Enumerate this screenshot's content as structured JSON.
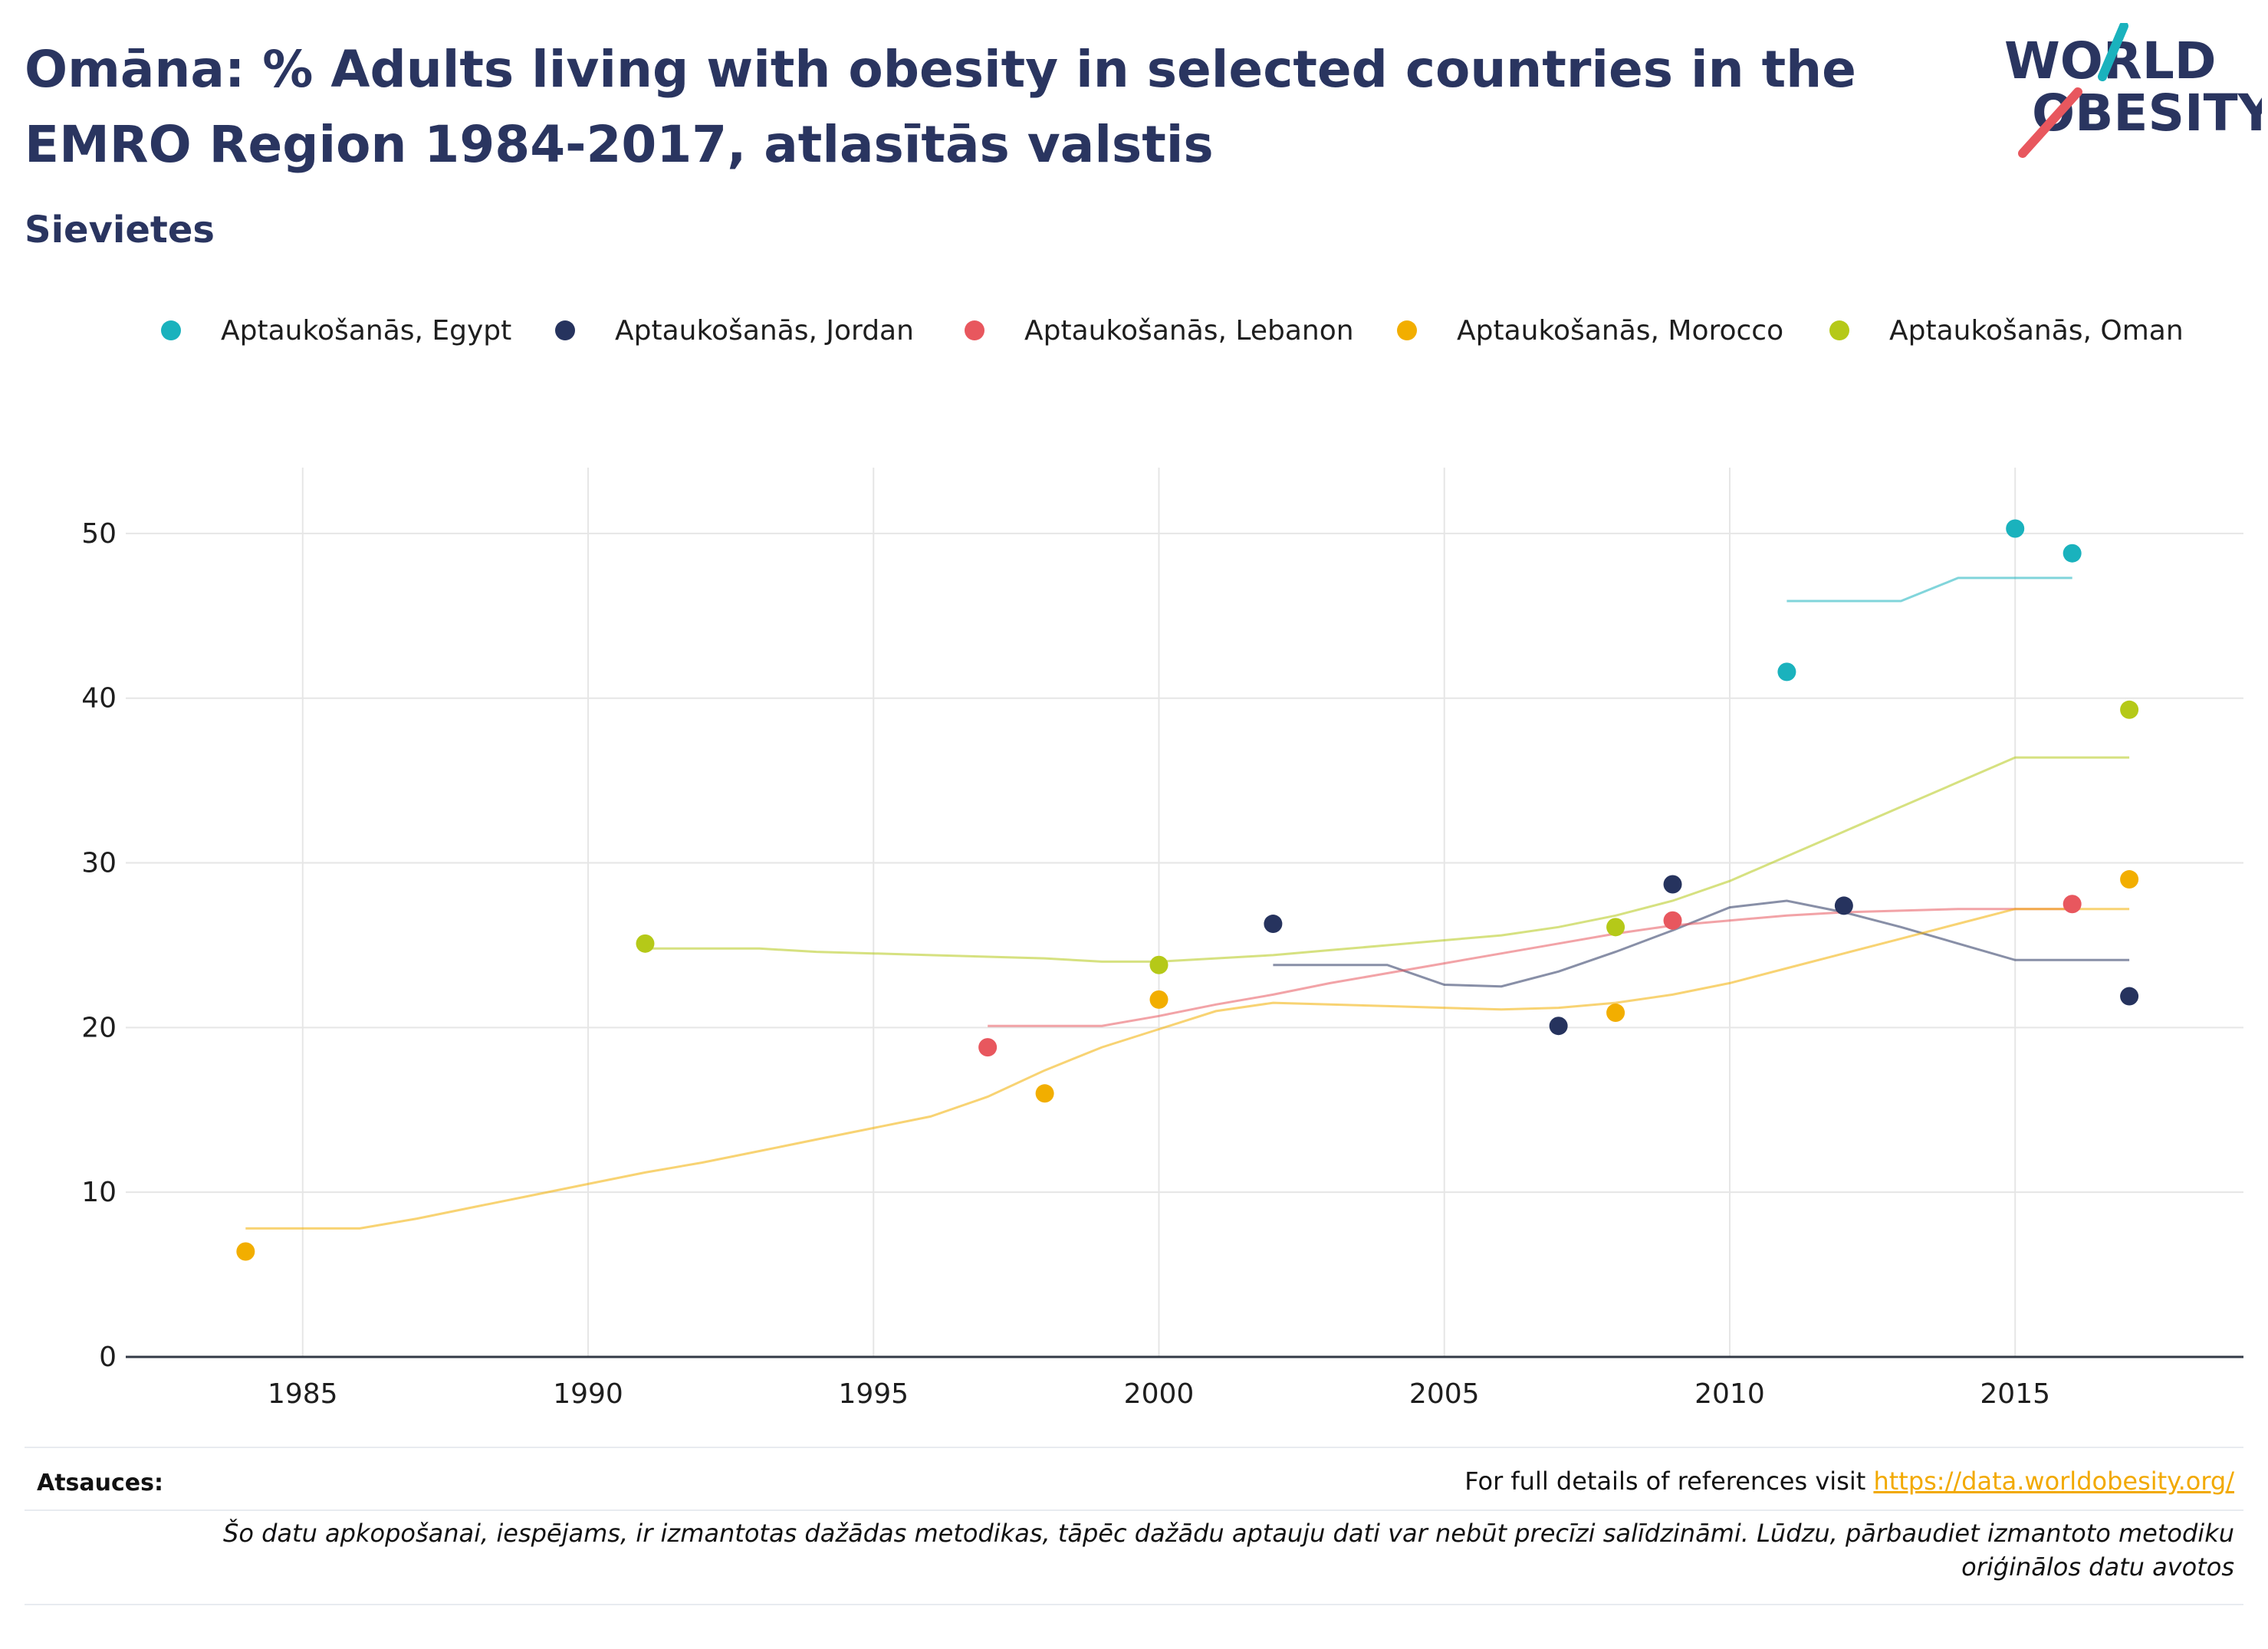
{
  "header": {
    "title": "Omāna: % Adults living with obesity in selected countries in the EMRO Region 1984-2017, atlasītās valstis",
    "subtitle": "Sievietes"
  },
  "logo": {
    "line1": "WORLD",
    "line2": "OBESITY"
  },
  "colors": {
    "Egypt": "#1ab2bd",
    "Jordan": "#26335e",
    "Lebanon": "#e8575e",
    "Morocco": "#f2ae00",
    "Oman": "#b5c918",
    "title": "#2a3560",
    "link": "#f2a900"
  },
  "chart_data": {
    "type": "scatter",
    "xlim": [
      1981.9,
      2019
    ],
    "ylim": [
      0,
      54
    ],
    "x_ticks": [
      1985,
      1990,
      1995,
      2000,
      2005,
      2010,
      2015
    ],
    "y_ticks": [
      0,
      10,
      20,
      30,
      40,
      50
    ],
    "grid": true,
    "legend_position": "top",
    "series": [
      {
        "name": "Aptaukošanās, Egypt",
        "key": "Egypt",
        "points": [
          [
            2011,
            41.6
          ],
          [
            2015,
            50.3
          ],
          [
            2016,
            48.8
          ]
        ],
        "trend": [
          [
            2011,
            45.9
          ],
          [
            2012,
            45.9
          ],
          [
            2013,
            45.9
          ],
          [
            2014,
            47.3
          ],
          [
            2015,
            47.3
          ],
          [
            2016,
            47.3
          ]
        ]
      },
      {
        "name": "Aptaukošanās, Jordan",
        "key": "Jordan",
        "points": [
          [
            2002,
            26.3
          ],
          [
            2007,
            20.1
          ],
          [
            2009,
            28.7
          ],
          [
            2012,
            27.4
          ],
          [
            2017,
            21.9
          ]
        ],
        "trend": [
          [
            2002,
            23.8
          ],
          [
            2003,
            23.8
          ],
          [
            2004,
            23.8
          ],
          [
            2005,
            22.6
          ],
          [
            2006,
            22.5
          ],
          [
            2007,
            23.4
          ],
          [
            2008,
            24.6
          ],
          [
            2009,
            25.9
          ],
          [
            2010,
            27.3
          ],
          [
            2011,
            27.7
          ],
          [
            2012,
            27.0
          ],
          [
            2013,
            26.1
          ],
          [
            2014,
            25.1
          ],
          [
            2015,
            24.1
          ],
          [
            2016,
            24.1
          ],
          [
            2017,
            24.1
          ]
        ]
      },
      {
        "name": "Aptaukošanās, Lebanon",
        "key": "Lebanon",
        "points": [
          [
            1997,
            18.8
          ],
          [
            2009,
            26.5
          ],
          [
            2016,
            27.5
          ]
        ],
        "trend": [
          [
            1997,
            20.1
          ],
          [
            1998,
            20.1
          ],
          [
            1999,
            20.1
          ],
          [
            2000,
            20.7
          ],
          [
            2001,
            21.4
          ],
          [
            2002,
            22.0
          ],
          [
            2003,
            22.7
          ],
          [
            2004,
            23.3
          ],
          [
            2005,
            23.9
          ],
          [
            2006,
            24.5
          ],
          [
            2007,
            25.1
          ],
          [
            2008,
            25.7
          ],
          [
            2009,
            26.2
          ],
          [
            2010,
            26.5
          ],
          [
            2011,
            26.8
          ],
          [
            2012,
            27.0
          ],
          [
            2013,
            27.1
          ],
          [
            2014,
            27.2
          ],
          [
            2015,
            27.2
          ],
          [
            2016,
            27.2
          ]
        ]
      },
      {
        "name": "Aptaukošanās, Morocco",
        "key": "Morocco",
        "points": [
          [
            1984,
            6.4
          ],
          [
            1998,
            16.0
          ],
          [
            2000,
            21.7
          ],
          [
            2008,
            20.9
          ],
          [
            2017,
            29.0
          ]
        ],
        "trend": [
          [
            1984,
            7.8
          ],
          [
            1985,
            7.8
          ],
          [
            1986,
            7.8
          ],
          [
            1987,
            8.4
          ],
          [
            1988,
            9.1
          ],
          [
            1989,
            9.8
          ],
          [
            1990,
            10.5
          ],
          [
            1991,
            11.2
          ],
          [
            1992,
            11.8
          ],
          [
            1993,
            12.5
          ],
          [
            1994,
            13.2
          ],
          [
            1995,
            13.9
          ],
          [
            1996,
            14.6
          ],
          [
            1997,
            15.8
          ],
          [
            1998,
            17.4
          ],
          [
            1999,
            18.8
          ],
          [
            2000,
            19.9
          ],
          [
            2001,
            21.0
          ],
          [
            2002,
            21.5
          ],
          [
            2003,
            21.4
          ],
          [
            2004,
            21.3
          ],
          [
            2005,
            21.2
          ],
          [
            2006,
            21.1
          ],
          [
            2007,
            21.2
          ],
          [
            2008,
            21.5
          ],
          [
            2009,
            22.0
          ],
          [
            2010,
            22.7
          ],
          [
            2011,
            23.6
          ],
          [
            2012,
            24.5
          ],
          [
            2013,
            25.4
          ],
          [
            2014,
            26.3
          ],
          [
            2015,
            27.2
          ],
          [
            2016,
            27.2
          ],
          [
            2017,
            27.2
          ]
        ]
      },
      {
        "name": "Aptaukošanās, Oman",
        "key": "Oman",
        "points": [
          [
            1991,
            25.1
          ],
          [
            2000,
            23.8
          ],
          [
            2008,
            26.1
          ],
          [
            2017,
            39.3
          ]
        ],
        "trend": [
          [
            1991,
            24.8
          ],
          [
            1992,
            24.8
          ],
          [
            1993,
            24.8
          ],
          [
            1994,
            24.6
          ],
          [
            1995,
            24.5
          ],
          [
            1996,
            24.4
          ],
          [
            1997,
            24.3
          ],
          [
            1998,
            24.2
          ],
          [
            1999,
            24.0
          ],
          [
            2000,
            24.0
          ],
          [
            2001,
            24.2
          ],
          [
            2002,
            24.4
          ],
          [
            2003,
            24.7
          ],
          [
            2004,
            25.0
          ],
          [
            2005,
            25.3
          ],
          [
            2006,
            25.6
          ],
          [
            2007,
            26.1
          ],
          [
            2008,
            26.8
          ],
          [
            2009,
            27.7
          ],
          [
            2010,
            28.9
          ],
          [
            2011,
            30.4
          ],
          [
            2012,
            31.9
          ],
          [
            2013,
            33.4
          ],
          [
            2014,
            34.9
          ],
          [
            2015,
            36.4
          ],
          [
            2016,
            36.4
          ],
          [
            2017,
            36.4
          ]
        ]
      }
    ]
  },
  "footer": {
    "sources_label": "Atsauces:",
    "sources_text": "For full details of references visit ",
    "sources_link": "https://data.worldobesity.org/",
    "note": "Šo datu apkopošanai, iespējams, ir izmantotas dažādas metodikas, tāpēc dažādu aptauju dati var nebūt precīzi salīdzināmi. Lūdzu, pārbaudiet izmantoto metodiku oriģinālos datu avotos"
  }
}
